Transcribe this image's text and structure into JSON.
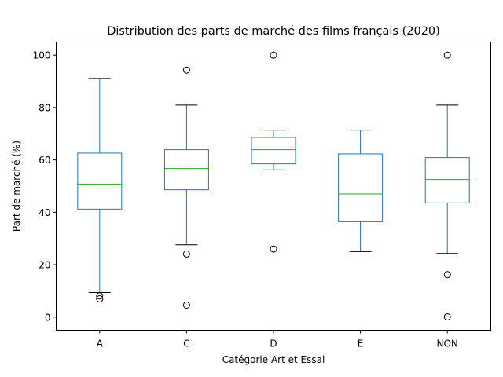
{
  "chart_data": {
    "type": "boxplot",
    "title": "Distribution des parts de marché des films français (2020)",
    "xlabel": "Catégorie Art et Essai",
    "ylabel": "Part de marché (%)",
    "ylim": [
      -5,
      105
    ],
    "yticks": [
      0,
      20,
      40,
      60,
      80,
      100
    ],
    "grid": false,
    "categories": [
      "A",
      "C",
      "D",
      "E",
      "NON"
    ],
    "boxes": [
      {
        "category": "A",
        "whisker_low": 9.4,
        "q1": 41.2,
        "median": 50.8,
        "q3": 62.6,
        "whisker_high": 91.1,
        "outliers": [
          8.1,
          7.0
        ]
      },
      {
        "category": "C",
        "whisker_low": 27.6,
        "q1": 48.6,
        "median": 56.7,
        "q3": 63.9,
        "whisker_high": 80.9,
        "outliers": [
          94.3,
          24.1,
          4.6
        ]
      },
      {
        "category": "D",
        "whisker_low": 56.2,
        "q1": 58.5,
        "median": 63.9,
        "q3": 68.6,
        "whisker_high": 71.4,
        "outliers": [
          100.0,
          26.0
        ]
      },
      {
        "category": "E",
        "whisker_low": 25.0,
        "q1": 36.4,
        "median": 47.0,
        "q3": 62.3,
        "whisker_high": 71.4,
        "outliers": []
      },
      {
        "category": "NON",
        "whisker_low": 24.3,
        "q1": 43.6,
        "median": 52.5,
        "q3": 60.9,
        "whisker_high": 80.9,
        "outliers": [
          100.0,
          16.2,
          0.1
        ]
      }
    ],
    "colors": {
      "box": "#1f77b4",
      "median": "#2ca02c",
      "whisker": "#1f77b4",
      "cap": "#000000",
      "outlier": "#000000"
    }
  }
}
